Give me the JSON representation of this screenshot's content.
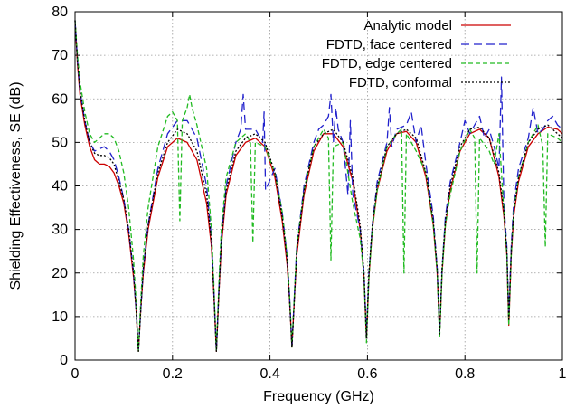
{
  "chart_data": {
    "type": "line",
    "title": "",
    "xlabel": "Frequency (GHz)",
    "ylabel": "Shielding Effectiveness, SE (dB)",
    "xlim": [
      0,
      1
    ],
    "ylim": [
      0,
      80
    ],
    "xticks": [
      0,
      0.2,
      0.4,
      0.6,
      0.8,
      1
    ],
    "xtick_labels": [
      "0",
      "0.2",
      "0.4",
      "0.6",
      "0.8",
      "1"
    ],
    "yticks": [
      0,
      10,
      20,
      30,
      40,
      50,
      60,
      70,
      80
    ],
    "ytick_labels": [
      "0",
      "10",
      "20",
      "30",
      "40",
      "50",
      "60",
      "70",
      "80"
    ],
    "grid": true,
    "legend_position": "top-right",
    "resonances_ghz": [
      0.13,
      0.29,
      0.445,
      0.598,
      0.748,
      0.89
    ],
    "series": [
      {
        "name": "Analytic model",
        "color": "#cc0000",
        "dash": "solid",
        "x": [
          0,
          0.005,
          0.01,
          0.02,
          0.03,
          0.04,
          0.05,
          0.06,
          0.07,
          0.08,
          0.09,
          0.1,
          0.11,
          0.12,
          0.125,
          0.13,
          0.135,
          0.14,
          0.15,
          0.17,
          0.19,
          0.21,
          0.23,
          0.25,
          0.27,
          0.28,
          0.285,
          0.29,
          0.295,
          0.3,
          0.31,
          0.33,
          0.35,
          0.37,
          0.39,
          0.41,
          0.425,
          0.435,
          0.44,
          0.445,
          0.45,
          0.455,
          0.47,
          0.49,
          0.51,
          0.53,
          0.55,
          0.57,
          0.585,
          0.593,
          0.598,
          0.603,
          0.61,
          0.62,
          0.64,
          0.66,
          0.68,
          0.7,
          0.72,
          0.735,
          0.743,
          0.748,
          0.753,
          0.76,
          0.77,
          0.79,
          0.81,
          0.83,
          0.85,
          0.87,
          0.88,
          0.886,
          0.89,
          0.895,
          0.9,
          0.91,
          0.93,
          0.95,
          0.97,
          0.99,
          1.0
        ],
        "y": [
          78,
          68,
          61,
          54,
          49,
          46,
          45,
          45,
          44.5,
          43,
          40,
          36,
          29,
          19,
          12,
          2,
          12,
          20,
          30,
          42,
          49,
          51,
          50,
          46,
          36,
          26,
          15,
          2,
          15,
          26,
          38,
          47,
          50,
          51,
          49,
          42,
          32,
          22,
          14,
          3,
          14,
          24,
          38,
          48,
          52,
          52,
          49,
          41,
          30,
          19,
          5,
          19,
          30,
          39,
          48,
          52,
          52.5,
          50,
          42,
          31,
          20,
          6,
          20,
          31,
          39,
          48,
          52,
          53,
          51,
          42,
          33,
          24,
          8,
          24,
          33,
          41,
          49,
          52,
          53.5,
          53,
          52
        ]
      },
      {
        "name": "FDTD, face centered",
        "color": "#2222cc",
        "dash": "long-dash",
        "x": [
          0,
          0.005,
          0.01,
          0.02,
          0.03,
          0.04,
          0.05,
          0.06,
          0.07,
          0.08,
          0.09,
          0.1,
          0.11,
          0.12,
          0.125,
          0.13,
          0.135,
          0.14,
          0.15,
          0.17,
          0.19,
          0.21,
          0.23,
          0.25,
          0.27,
          0.28,
          0.285,
          0.29,
          0.295,
          0.3,
          0.31,
          0.33,
          0.34,
          0.345,
          0.35,
          0.37,
          0.385,
          0.388,
          0.391,
          0.41,
          0.425,
          0.435,
          0.44,
          0.445,
          0.45,
          0.455,
          0.47,
          0.49,
          0.5,
          0.51,
          0.52,
          0.525,
          0.53,
          0.535,
          0.54,
          0.55,
          0.56,
          0.565,
          0.57,
          0.585,
          0.593,
          0.598,
          0.603,
          0.61,
          0.62,
          0.64,
          0.645,
          0.65,
          0.66,
          0.68,
          0.69,
          0.7,
          0.71,
          0.72,
          0.735,
          0.743,
          0.748,
          0.753,
          0.76,
          0.77,
          0.79,
          0.8,
          0.81,
          0.82,
          0.83,
          0.84,
          0.85,
          0.86,
          0.87,
          0.875,
          0.88,
          0.886,
          0.89,
          0.895,
          0.9,
          0.91,
          0.93,
          0.94,
          0.95,
          0.96,
          0.97,
          0.98,
          0.99,
          1.0
        ],
        "y": [
          78,
          69,
          62,
          55,
          50,
          48,
          48.5,
          49,
          48,
          46,
          42,
          37,
          30,
          20,
          12,
          2,
          12,
          21,
          31,
          44,
          52,
          55,
          55,
          51,
          40,
          28,
          16,
          2,
          16,
          28,
          40,
          50,
          53,
          61,
          53,
          53,
          50,
          57,
          39,
          44,
          34,
          24,
          15,
          3,
          15,
          26,
          40,
          50,
          53,
          54,
          56,
          61,
          50,
          58,
          53,
          50,
          38,
          55,
          38,
          30,
          20,
          6,
          20,
          31,
          41,
          50,
          58,
          49,
          53,
          54,
          57,
          50,
          54,
          45,
          33,
          21,
          6,
          21,
          33,
          41,
          50,
          55,
          52,
          54,
          56,
          51,
          53,
          49,
          44,
          65,
          36,
          26,
          10,
          26,
          36,
          44,
          51,
          58,
          52,
          53,
          55,
          56,
          54,
          53
        ]
      },
      {
        "name": "FDTD, edge centered",
        "color": "#22bb22",
        "dash": "short-dash",
        "x": [
          0,
          0.005,
          0.01,
          0.02,
          0.03,
          0.04,
          0.05,
          0.06,
          0.07,
          0.08,
          0.09,
          0.1,
          0.11,
          0.12,
          0.125,
          0.13,
          0.135,
          0.14,
          0.15,
          0.17,
          0.19,
          0.2,
          0.21,
          0.215,
          0.22,
          0.23,
          0.235,
          0.24,
          0.25,
          0.27,
          0.28,
          0.285,
          0.29,
          0.295,
          0.3,
          0.31,
          0.33,
          0.35,
          0.36,
          0.365,
          0.37,
          0.39,
          0.41,
          0.425,
          0.435,
          0.44,
          0.445,
          0.45,
          0.455,
          0.47,
          0.49,
          0.51,
          0.52,
          0.525,
          0.53,
          0.55,
          0.56,
          0.57,
          0.585,
          0.593,
          0.598,
          0.603,
          0.61,
          0.62,
          0.64,
          0.66,
          0.67,
          0.675,
          0.68,
          0.7,
          0.72,
          0.735,
          0.743,
          0.748,
          0.753,
          0.76,
          0.77,
          0.79,
          0.81,
          0.82,
          0.825,
          0.83,
          0.85,
          0.86,
          0.87,
          0.88,
          0.886,
          0.89,
          0.895,
          0.9,
          0.91,
          0.93,
          0.95,
          0.96,
          0.965,
          0.97,
          0.99,
          1.0
        ],
        "y": [
          78,
          70,
          64,
          57,
          52,
          50,
          51,
          52,
          52,
          51,
          48,
          43,
          35,
          23,
          14,
          2,
          14,
          24,
          35,
          49,
          56,
          57,
          55,
          32,
          55,
          58,
          61,
          58,
          54,
          44,
          30,
          17,
          2,
          17,
          30,
          42,
          50,
          52,
          50,
          27,
          50,
          49,
          43,
          34,
          24,
          15,
          3,
          15,
          26,
          39,
          49,
          53,
          51,
          23,
          49,
          50,
          43,
          36,
          28,
          19,
          4,
          19,
          30,
          39,
          49,
          52,
          53,
          20,
          52,
          48,
          43,
          31,
          20,
          5,
          20,
          31,
          38,
          48,
          53,
          51,
          20,
          51,
          48,
          45,
          52,
          34,
          24,
          8,
          24,
          34,
          42,
          50,
          54,
          49,
          26,
          52,
          51,
          50
        ]
      },
      {
        "name": "FDTD, conformal",
        "color": "#000000",
        "dash": "dotted",
        "x": [
          0,
          0.005,
          0.01,
          0.02,
          0.03,
          0.04,
          0.05,
          0.06,
          0.07,
          0.08,
          0.09,
          0.1,
          0.11,
          0.12,
          0.125,
          0.13,
          0.135,
          0.14,
          0.15,
          0.17,
          0.19,
          0.21,
          0.23,
          0.25,
          0.27,
          0.28,
          0.285,
          0.29,
          0.295,
          0.3,
          0.31,
          0.33,
          0.35,
          0.37,
          0.39,
          0.41,
          0.425,
          0.435,
          0.44,
          0.445,
          0.45,
          0.455,
          0.47,
          0.49,
          0.51,
          0.53,
          0.55,
          0.57,
          0.585,
          0.593,
          0.598,
          0.603,
          0.61,
          0.62,
          0.64,
          0.66,
          0.68,
          0.7,
          0.72,
          0.735,
          0.743,
          0.748,
          0.753,
          0.76,
          0.77,
          0.79,
          0.81,
          0.83,
          0.85,
          0.87,
          0.88,
          0.886,
          0.89,
          0.895,
          0.9,
          0.91,
          0.93,
          0.95,
          0.97,
          0.99,
          1.0
        ],
        "y": [
          78,
          68.5,
          62,
          55,
          50,
          47.5,
          47,
          47,
          46.5,
          45,
          41,
          37,
          30,
          20,
          12,
          2,
          12,
          21,
          31,
          43,
          50,
          53,
          52,
          48,
          38,
          27,
          15,
          2,
          15,
          27,
          39,
          48,
          51,
          52,
          50,
          43,
          33,
          23,
          14,
          3,
          14,
          25,
          39,
          49,
          52,
          53,
          50,
          42,
          31,
          20,
          5,
          20,
          31,
          40,
          49,
          52,
          53,
          51,
          43,
          32,
          21,
          6,
          21,
          32,
          40,
          49,
          53,
          53.5,
          51,
          43,
          34,
          25,
          9,
          25,
          34,
          42,
          50,
          53,
          54,
          52,
          51
        ]
      }
    ]
  }
}
